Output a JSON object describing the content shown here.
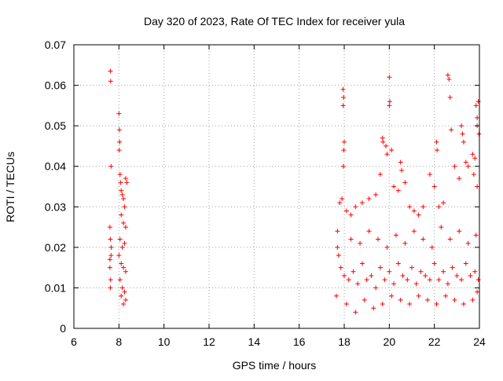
{
  "chart_data": {
    "type": "scatter",
    "title": "Day 320 of 2023, Rate Of TEC Index for receiver yula",
    "xlabel": "GPS time / hours",
    "ylabel": "ROTI / TECUs",
    "xlim": [
      6,
      24
    ],
    "ylim": [
      0,
      0.07
    ],
    "xticks": [
      6,
      8,
      10,
      12,
      14,
      16,
      18,
      20,
      22,
      24
    ],
    "xtick_labels": [
      "6",
      "8",
      "10",
      "12",
      "14",
      "16",
      "18",
      "20",
      "22",
      "24"
    ],
    "yticks": [
      0,
      0.01,
      0.02,
      0.03,
      0.04,
      0.05,
      0.06,
      0.07
    ],
    "ytick_labels": [
      "0",
      "0.01",
      "0.02",
      "0.03",
      "0.04",
      "0.05",
      "0.06",
      "0.07"
    ],
    "grid": true,
    "marker": "+",
    "color": "#ff0000",
    "series": [
      {
        "name": "ROTI",
        "points": [
          [
            7.62,
            0.0635
          ],
          [
            7.63,
            0.061
          ],
          [
            7.65,
            0.04
          ],
          [
            7.6,
            0.025
          ],
          [
            7.62,
            0.022
          ],
          [
            7.65,
            0.018
          ],
          [
            7.6,
            0.015
          ],
          [
            7.63,
            0.012
          ],
          [
            7.62,
            0.01
          ],
          [
            7.66,
            0.02
          ],
          [
            7.6,
            0.017
          ],
          [
            8.0,
            0.053
          ],
          [
            8.02,
            0.049
          ],
          [
            8.03,
            0.046
          ],
          [
            8.01,
            0.044
          ],
          [
            8.05,
            0.038
          ],
          [
            8.08,
            0.036
          ],
          [
            8.1,
            0.034
          ],
          [
            8.15,
            0.033
          ],
          [
            8.2,
            0.032
          ],
          [
            8.3,
            0.037
          ],
          [
            8.35,
            0.036
          ],
          [
            8.25,
            0.03
          ],
          [
            8.1,
            0.028
          ],
          [
            8.2,
            0.026
          ],
          [
            8.3,
            0.025
          ],
          [
            8.05,
            0.022
          ],
          [
            8.15,
            0.02
          ],
          [
            8.25,
            0.021
          ],
          [
            8.0,
            0.018
          ],
          [
            8.1,
            0.016
          ],
          [
            8.2,
            0.015
          ],
          [
            8.3,
            0.014
          ],
          [
            8.05,
            0.012
          ],
          [
            8.15,
            0.01
          ],
          [
            8.25,
            0.009
          ],
          [
            8.3,
            0.007
          ],
          [
            8.2,
            0.006
          ],
          [
            8.1,
            0.008
          ],
          [
            17.95,
            0.059
          ],
          [
            17.97,
            0.057
          ],
          [
            17.95,
            0.055
          ],
          [
            18.0,
            0.046
          ],
          [
            17.98,
            0.044
          ],
          [
            17.96,
            0.04
          ],
          [
            17.9,
            0.032
          ],
          [
            17.8,
            0.031
          ],
          [
            18.1,
            0.029
          ],
          [
            18.3,
            0.028
          ],
          [
            18.5,
            0.03
          ],
          [
            18.8,
            0.031
          ],
          [
            19.1,
            0.032
          ],
          [
            19.4,
            0.033
          ],
          [
            19.6,
            0.038
          ],
          [
            19.7,
            0.047
          ],
          [
            19.72,
            0.046
          ],
          [
            19.85,
            0.045
          ],
          [
            19.9,
            0.043
          ],
          [
            20.0,
            0.062
          ],
          [
            20.02,
            0.056
          ],
          [
            20.0,
            0.055
          ],
          [
            20.1,
            0.044
          ],
          [
            20.2,
            0.035
          ],
          [
            20.4,
            0.034
          ],
          [
            20.5,
            0.041
          ],
          [
            20.55,
            0.039
          ],
          [
            20.7,
            0.036
          ],
          [
            20.9,
            0.03
          ],
          [
            21.1,
            0.029
          ],
          [
            21.3,
            0.028
          ],
          [
            21.5,
            0.03
          ],
          [
            21.8,
            0.038
          ],
          [
            22.0,
            0.035
          ],
          [
            22.1,
            0.046
          ],
          [
            22.12,
            0.044
          ],
          [
            22.2,
            0.03
          ],
          [
            22.4,
            0.031
          ],
          [
            22.6,
            0.0625
          ],
          [
            22.65,
            0.0615
          ],
          [
            22.7,
            0.057
          ],
          [
            22.75,
            0.049
          ],
          [
            22.9,
            0.04
          ],
          [
            23.1,
            0.037
          ],
          [
            23.2,
            0.05
          ],
          [
            23.25,
            0.048
          ],
          [
            23.3,
            0.046
          ],
          [
            23.4,
            0.041
          ],
          [
            23.5,
            0.04
          ],
          [
            23.7,
            0.043
          ],
          [
            23.75,
            0.038
          ],
          [
            23.85,
            0.055
          ],
          [
            23.9,
            0.052
          ],
          [
            23.95,
            0.056
          ],
          [
            23.9,
            0.05
          ],
          [
            23.98,
            0.048
          ],
          [
            23.8,
            0.042
          ],
          [
            23.9,
            0.035
          ],
          [
            17.7,
            0.02
          ],
          [
            17.75,
            0.018
          ],
          [
            17.85,
            0.015
          ],
          [
            18.0,
            0.013
          ],
          [
            18.2,
            0.012
          ],
          [
            18.4,
            0.014
          ],
          [
            18.6,
            0.011
          ],
          [
            18.8,
            0.016
          ],
          [
            19.0,
            0.012
          ],
          [
            19.2,
            0.013
          ],
          [
            19.4,
            0.01
          ],
          [
            19.6,
            0.015
          ],
          [
            19.8,
            0.012
          ],
          [
            20.0,
            0.014
          ],
          [
            20.2,
            0.011
          ],
          [
            20.4,
            0.016
          ],
          [
            20.6,
            0.013
          ],
          [
            20.8,
            0.012
          ],
          [
            21.0,
            0.015
          ],
          [
            21.2,
            0.011
          ],
          [
            21.4,
            0.014
          ],
          [
            21.6,
            0.013
          ],
          [
            21.8,
            0.012
          ],
          [
            22.0,
            0.016
          ],
          [
            22.2,
            0.012
          ],
          [
            22.4,
            0.014
          ],
          [
            22.6,
            0.011
          ],
          [
            22.8,
            0.015
          ],
          [
            23.0,
            0.013
          ],
          [
            23.2,
            0.012
          ],
          [
            23.4,
            0.016
          ],
          [
            23.6,
            0.013
          ],
          [
            23.8,
            0.014
          ],
          [
            23.95,
            0.012
          ],
          [
            17.65,
            0.008
          ],
          [
            17.7,
            0.024
          ],
          [
            18.1,
            0.006
          ],
          [
            18.5,
            0.004
          ],
          [
            18.9,
            0.007
          ],
          [
            19.3,
            0.005
          ],
          [
            19.7,
            0.006
          ],
          [
            20.1,
            0.008
          ],
          [
            20.5,
            0.007
          ],
          [
            20.9,
            0.006
          ],
          [
            21.3,
            0.008
          ],
          [
            21.7,
            0.007
          ],
          [
            22.1,
            0.006
          ],
          [
            22.5,
            0.008
          ],
          [
            22.9,
            0.007
          ],
          [
            23.3,
            0.006
          ],
          [
            23.7,
            0.007
          ],
          [
            23.9,
            0.009
          ],
          [
            18.3,
            0.022
          ],
          [
            18.7,
            0.021
          ],
          [
            19.1,
            0.024
          ],
          [
            19.5,
            0.022
          ],
          [
            19.9,
            0.02
          ],
          [
            20.3,
            0.023
          ],
          [
            20.7,
            0.021
          ],
          [
            21.1,
            0.024
          ],
          [
            21.5,
            0.022
          ],
          [
            21.9,
            0.02
          ],
          [
            22.3,
            0.025
          ],
          [
            22.7,
            0.022
          ],
          [
            23.1,
            0.024
          ],
          [
            23.5,
            0.021
          ],
          [
            23.85,
            0.023
          ]
        ]
      }
    ]
  }
}
